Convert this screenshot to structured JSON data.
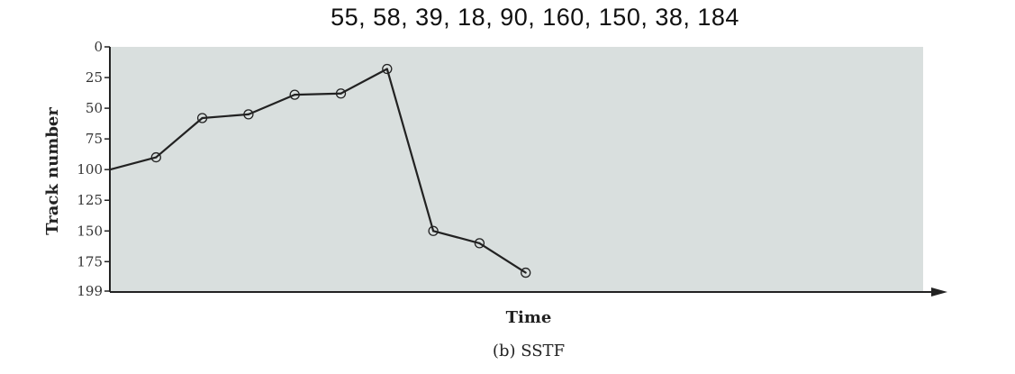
{
  "header": {
    "request_sequence": "55, 58, 39, 18, 90, 160, 150, 38, 184"
  },
  "chart_data": {
    "type": "line",
    "title": "",
    "caption": "(b) SSTF",
    "xlabel": "Time",
    "ylabel": "Track number",
    "ylim": [
      0,
      199
    ],
    "y_inverted": true,
    "y_ticks": [
      0,
      25,
      50,
      75,
      100,
      125,
      150,
      175,
      199
    ],
    "x_ticks_shown": false,
    "grid": false,
    "start_track": 100,
    "x": [
      0,
      1,
      2,
      3,
      4,
      5,
      6,
      7,
      8,
      9
    ],
    "tracks": [
      100,
      90,
      58,
      55,
      39,
      38,
      18,
      150,
      160,
      184
    ],
    "marked_points": [
      90,
      58,
      55,
      39,
      38,
      18,
      150,
      160,
      184
    ],
    "colors": {
      "plot_background": "#d9dfde",
      "line": "#222222",
      "axis": "#222222"
    }
  }
}
